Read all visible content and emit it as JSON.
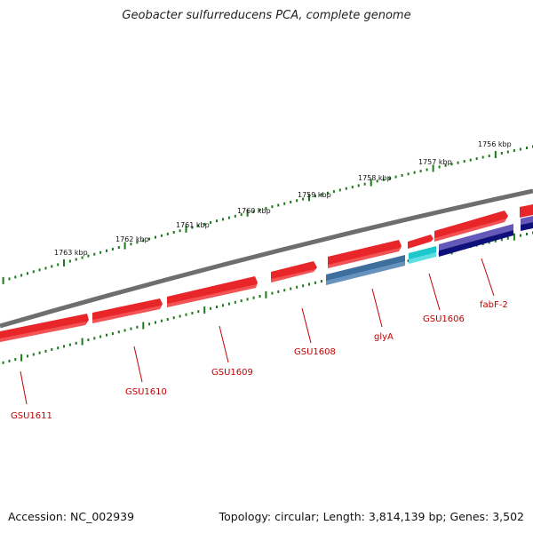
{
  "title": "Geobacter sulfurreducens PCA, complete genome",
  "footer": {
    "accession": "Accession: NC_002939",
    "summary": "Topology: circular; Length: 3,814,139 bp; Genes: 3,502"
  },
  "scale_labels": [
    "1763 kbp",
    "1762 kbp",
    "1761 kbp",
    "1760 kbp",
    "1759 kbp",
    "1758 kbp",
    "1757 kbp",
    "1756 kbp"
  ],
  "genes": [
    {
      "label": "GSU1611",
      "color": "#e8262a",
      "track": "outer"
    },
    {
      "label": "GSU1610",
      "color": "#e8262a",
      "track": "outer"
    },
    {
      "label": "GSU1609",
      "color": "#e8262a",
      "track": "outer"
    },
    {
      "label": "GSU1608",
      "color": "#e8262a",
      "track": "outer"
    },
    {
      "label": "glyA",
      "color": "#3d6f9e",
      "track": "inner"
    },
    {
      "label": "GSU1606",
      "color": "#1cc8cc",
      "track": "inner"
    },
    {
      "label": "fabF-2",
      "color": "#6458b8",
      "track": "inner"
    }
  ],
  "colors": {
    "backbone": "#808080",
    "scale_ticks": "#1a7a1a",
    "cds_red": "#e8262a",
    "cds_navy": "#10107a",
    "label_red": "#c00000"
  }
}
